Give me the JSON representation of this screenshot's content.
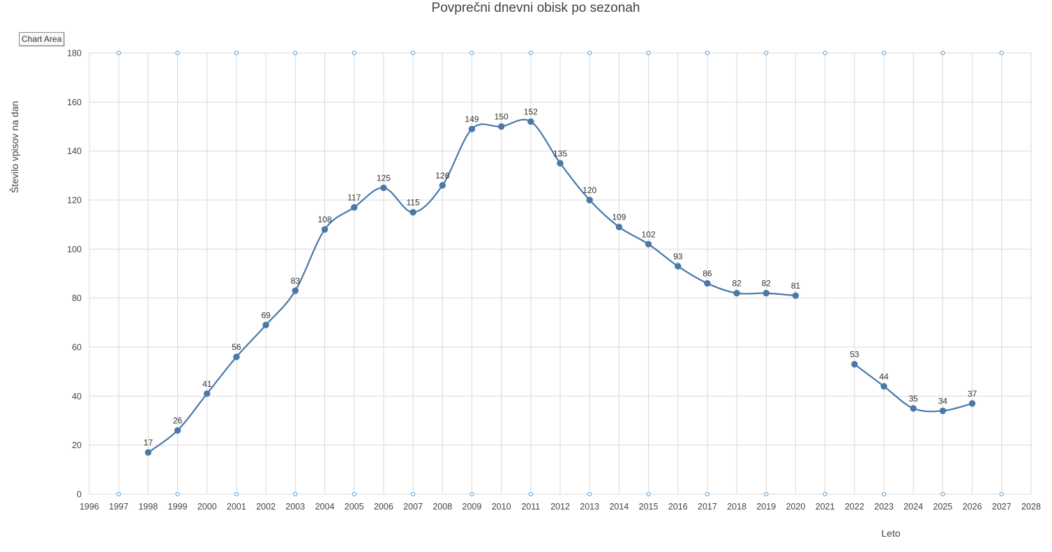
{
  "chart_data": {
    "type": "line",
    "title": "Povprečni dnevni obisk po sezonah",
    "xlabel": "Leto",
    "ylabel": "Število vpisov na dan",
    "xlim": [
      1996,
      2028
    ],
    "ylim": [
      0,
      180
    ],
    "x_ticks": [
      1996,
      1997,
      1998,
      1999,
      2000,
      2001,
      2002,
      2003,
      2004,
      2005,
      2006,
      2007,
      2008,
      2009,
      2010,
      2011,
      2012,
      2013,
      2014,
      2015,
      2016,
      2017,
      2018,
      2019,
      2020,
      2021,
      2022,
      2023,
      2024,
      2025,
      2026,
      2027,
      2028
    ],
    "y_ticks": [
      0,
      20,
      40,
      60,
      80,
      100,
      120,
      140,
      160,
      180
    ],
    "grid": true,
    "smooth": true,
    "color": "#4a78a8",
    "series": [
      {
        "segments": [
          {
            "x": [
              1998,
              1999,
              2000,
              2001,
              2002,
              2003,
              2004,
              2005,
              2006,
              2007,
              2008,
              2009,
              2010,
              2011,
              2012,
              2013,
              2014,
              2015,
              2016,
              2017,
              2018,
              2019,
              2020
            ],
            "y": [
              17,
              26,
              41,
              56,
              69,
              83,
              108,
              117,
              125,
              115,
              126,
              149,
              150,
              152,
              135,
              120,
              109,
              102,
              93,
              86,
              82,
              82,
              81
            ]
          },
          {
            "x": [
              2022,
              2023,
              2024,
              2025,
              2026
            ],
            "y": [
              53,
              44,
              35,
              34,
              37
            ]
          }
        ]
      }
    ]
  },
  "ui": {
    "tooltip": "Chart Area"
  }
}
